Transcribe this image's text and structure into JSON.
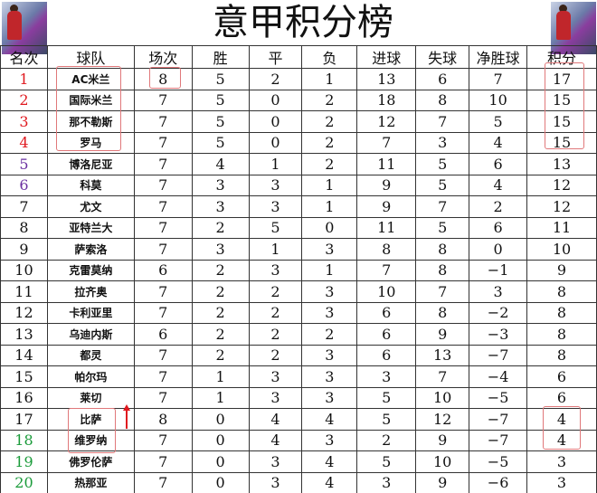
{
  "title": "意甲积分榜",
  "colors": {
    "top4": "#e0191f",
    "europa": "#6a2fa0",
    "relegation": "#1a9b3a",
    "highlight_box": "#e0787a"
  },
  "headers": [
    "名次",
    "球队",
    "场次",
    "胜",
    "平",
    "负",
    "进球",
    "失球",
    "净胜球",
    "积分"
  ],
  "rows": [
    [
      "1",
      "AC米兰",
      "8",
      "5",
      "2",
      "1",
      "13",
      "6",
      "7",
      "17"
    ],
    [
      "2",
      "国际米兰",
      "7",
      "5",
      "0",
      "2",
      "18",
      "8",
      "10",
      "15"
    ],
    [
      "3",
      "那不勒斯",
      "7",
      "5",
      "0",
      "2",
      "12",
      "7",
      "5",
      "15"
    ],
    [
      "4",
      "罗马",
      "7",
      "5",
      "0",
      "2",
      "7",
      "3",
      "4",
      "15"
    ],
    [
      "5",
      "博洛尼亚",
      "7",
      "4",
      "1",
      "2",
      "11",
      "5",
      "6",
      "13"
    ],
    [
      "6",
      "科莫",
      "7",
      "3",
      "3",
      "1",
      "9",
      "5",
      "4",
      "12"
    ],
    [
      "7",
      "尤文",
      "7",
      "3",
      "3",
      "1",
      "9",
      "7",
      "2",
      "12"
    ],
    [
      "8",
      "亚特兰大",
      "7",
      "2",
      "5",
      "0",
      "11",
      "5",
      "6",
      "11"
    ],
    [
      "9",
      "萨索洛",
      "7",
      "3",
      "1",
      "3",
      "8",
      "8",
      "0",
      "10"
    ],
    [
      "10",
      "克雷莫纳",
      "6",
      "2",
      "3",
      "1",
      "7",
      "8",
      "−1",
      "9"
    ],
    [
      "11",
      "拉齐奥",
      "7",
      "2",
      "2",
      "3",
      "10",
      "7",
      "3",
      "8"
    ],
    [
      "12",
      "卡利亚里",
      "7",
      "2",
      "2",
      "3",
      "6",
      "8",
      "−2",
      "8"
    ],
    [
      "13",
      "乌迪内斯",
      "6",
      "2",
      "2",
      "2",
      "6",
      "9",
      "−3",
      "8"
    ],
    [
      "14",
      "都灵",
      "7",
      "2",
      "2",
      "3",
      "6",
      "13",
      "−7",
      "8"
    ],
    [
      "15",
      "帕尔玛",
      "7",
      "1",
      "3",
      "3",
      "3",
      "7",
      "−4",
      "6"
    ],
    [
      "16",
      "莱切",
      "7",
      "1",
      "3",
      "3",
      "5",
      "10",
      "−5",
      "6"
    ],
    [
      "17",
      "比萨",
      "8",
      "0",
      "4",
      "4",
      "5",
      "12",
      "−7",
      "4"
    ],
    [
      "18",
      "维罗纳",
      "7",
      "0",
      "4",
      "3",
      "2",
      "9",
      "−7",
      "4"
    ],
    [
      "19",
      "佛罗伦萨",
      "7",
      "0",
      "3",
      "4",
      "5",
      "10",
      "−5",
      "3"
    ],
    [
      "20",
      "热那亚",
      "7",
      "0",
      "3",
      "4",
      "3",
      "9",
      "−6",
      "3"
    ]
  ]
}
